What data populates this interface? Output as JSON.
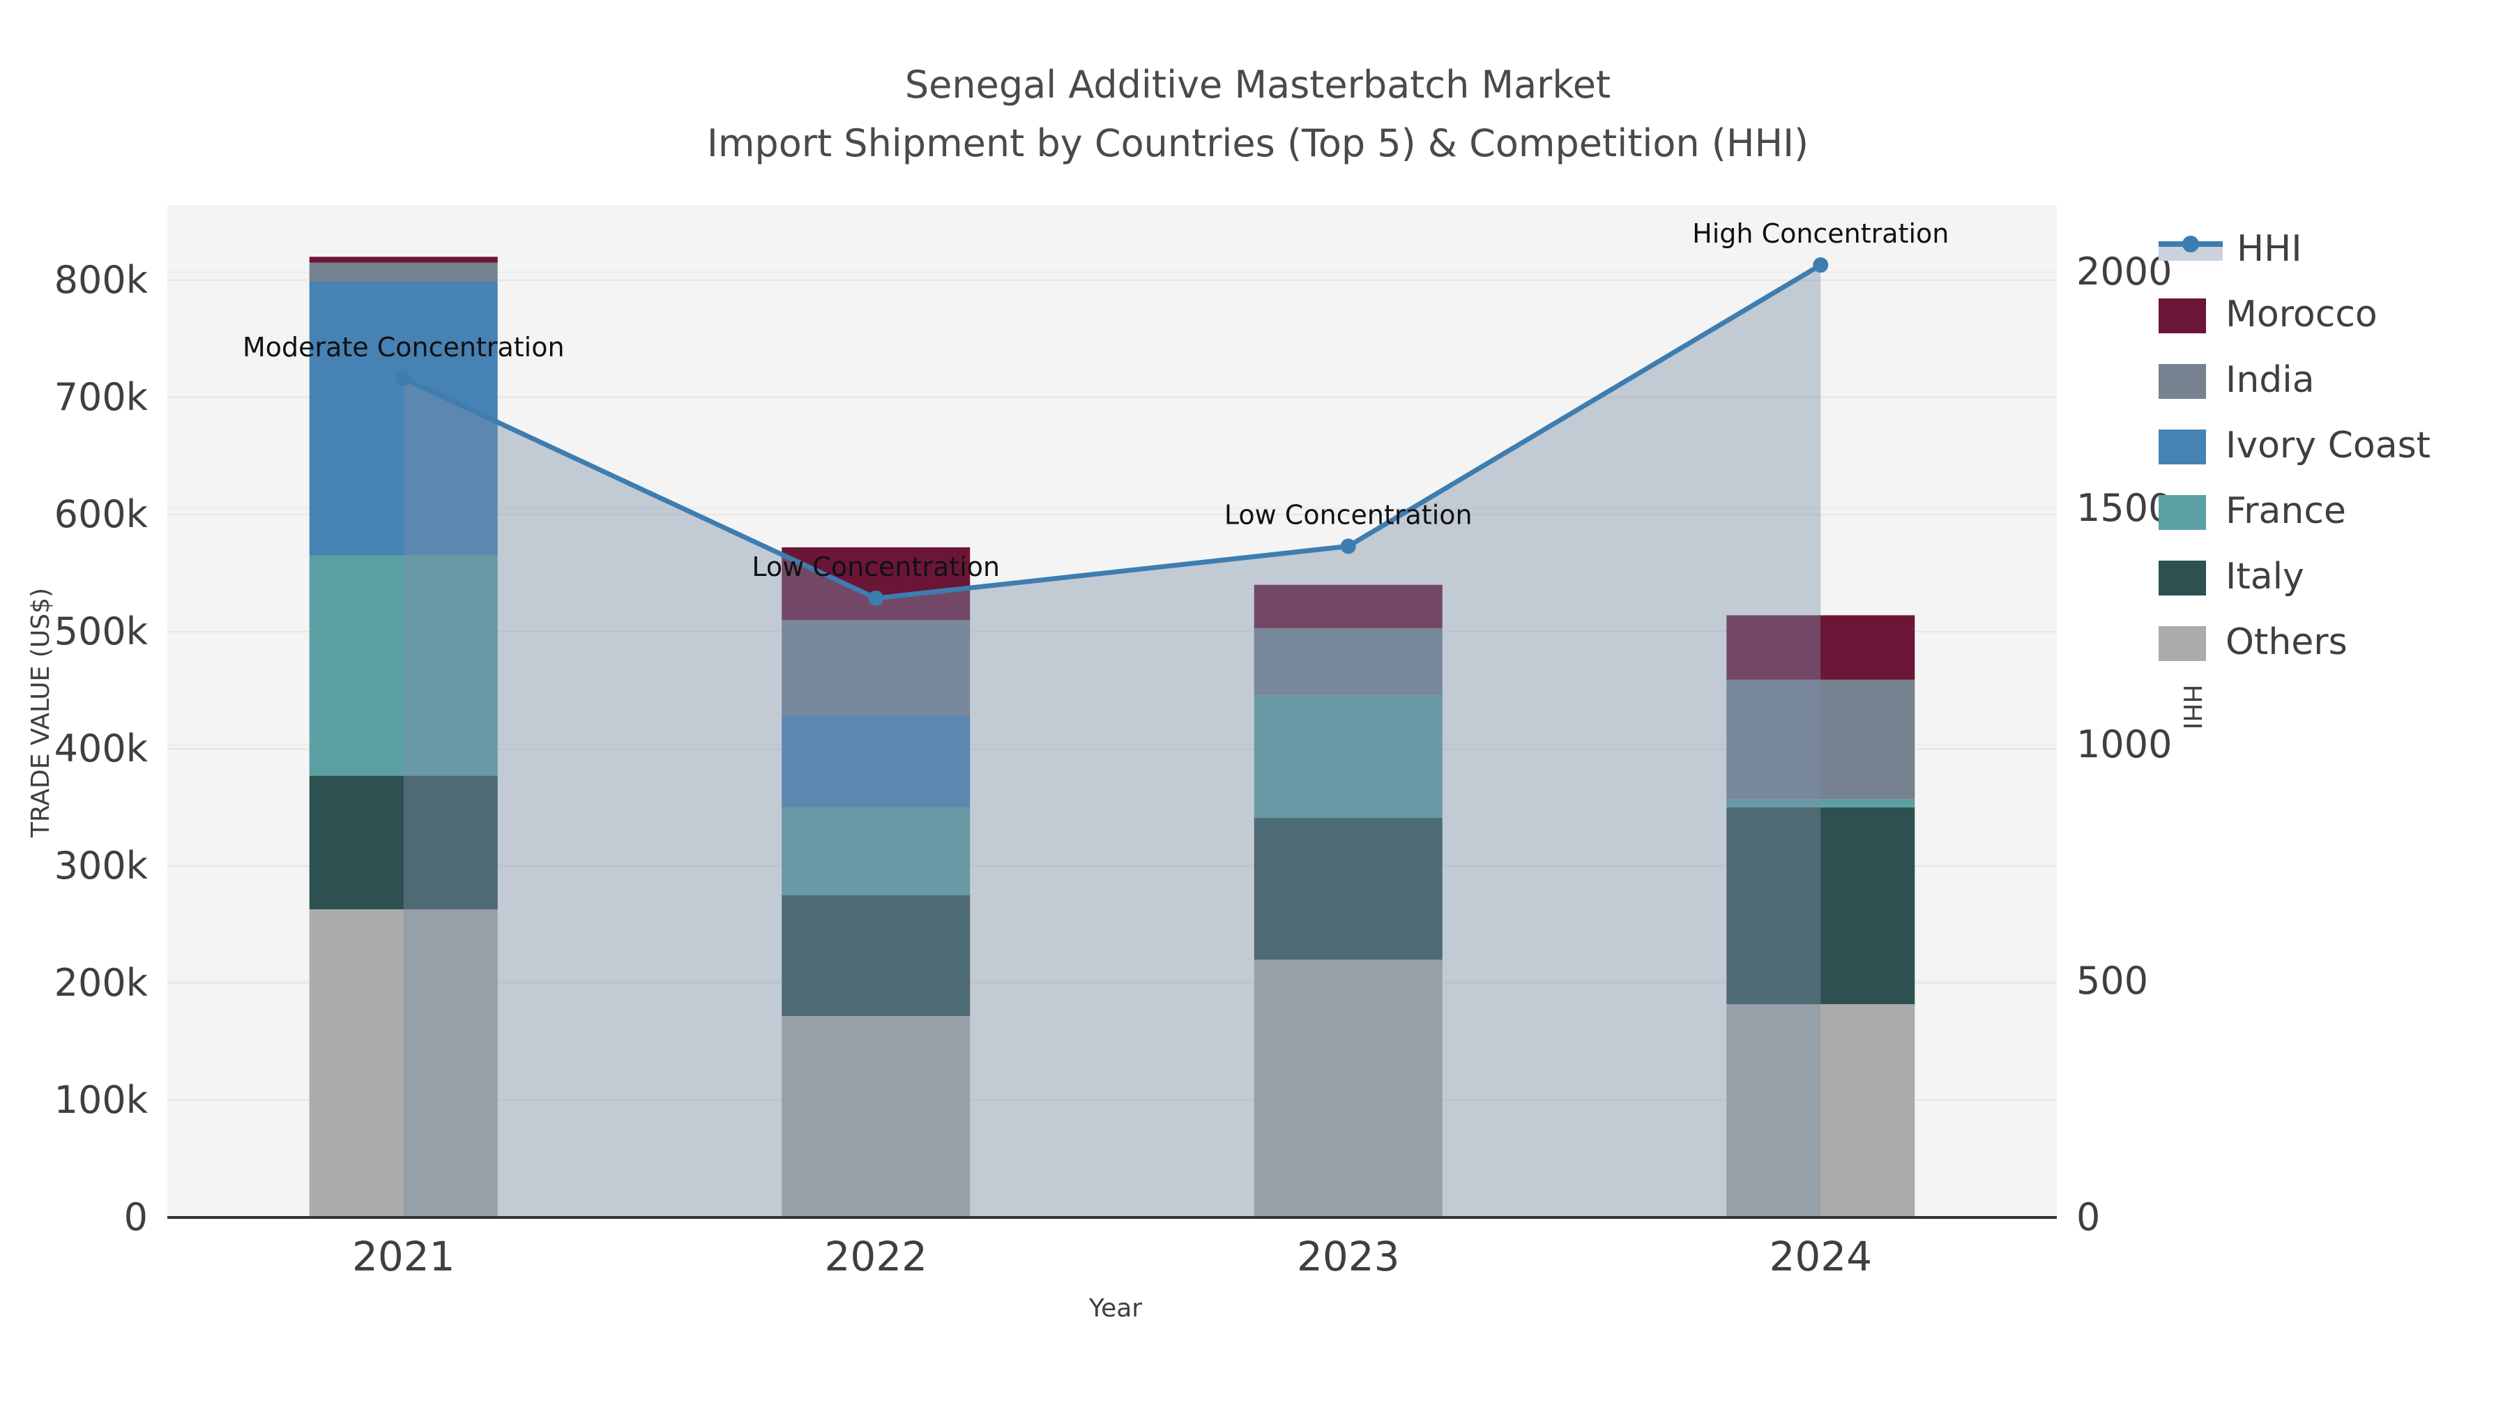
{
  "title": {
    "line1": "Senegal Additive Masterbatch Market",
    "line2": "Import Shipment by Countries (Top 5) & Competition (HHI)"
  },
  "axis_labels": {
    "x": "Year",
    "y_left": "TRADE VALUE (US$)",
    "y_right": "HHI"
  },
  "legend_order": [
    "HHI",
    "Morocco",
    "India",
    "Ivory Coast",
    "France",
    "Italy",
    "Others"
  ],
  "chart_data": {
    "type": "combo-stacked-bar-line-dual-axis",
    "title": "Senegal Additive Masterbatch Market — Import Shipment by Countries (Top 5) & Competition (HHI)",
    "categories": [
      "2021",
      "2022",
      "2023",
      "2024"
    ],
    "bar_series": [
      {
        "name": "Others",
        "color": "#ABABAB",
        "values": [
          263000,
          172000,
          220000,
          182000
        ]
      },
      {
        "name": "Italy",
        "color": "#2E5050",
        "values": [
          114000,
          103000,
          121000,
          168000
        ]
      },
      {
        "name": "France",
        "color": "#5BA0A3",
        "values": [
          188000,
          75000,
          105000,
          7000
        ]
      },
      {
        "name": "Ivory Coast",
        "color": "#4682B4",
        "values": [
          234000,
          79000,
          0,
          0
        ]
      },
      {
        "name": "India",
        "color": "#76828F",
        "values": [
          16000,
          81000,
          57000,
          102000
        ]
      },
      {
        "name": "Morocco",
        "color": "#6B1537",
        "values": [
          5000,
          62000,
          37000,
          55000
        ]
      }
    ],
    "bar_totals": [
      820000,
      572000,
      540000,
      514000
    ],
    "line_series": {
      "name": "HHI",
      "color": "#3E7DB0",
      "area_fill": "rgba(125,142,168,0.42)",
      "values": [
        1775,
        1310,
        1420,
        2015
      ]
    },
    "annotations": [
      "Moderate Concentration",
      "Low Concentration",
      "Low Concentration",
      "High Concentration"
    ],
    "xlabel": "Year",
    "y_left": {
      "label": "TRADE VALUE (US$)",
      "tick_step": 100000,
      "max_tick": 800000,
      "axis_max": 863000,
      "tick_suffix": "k"
    },
    "y_right": {
      "label": "HHI",
      "tick_step": 500,
      "max_tick": 2000,
      "axis_max": 2139
    },
    "grid": true,
    "legend_position": "top-right-outside",
    "plot_bg": "#F4F4F4",
    "grid_color": "#E7E7E7",
    "axis_line_color": "#333333",
    "tick_color": "#3F3F3F",
    "annotation_color": "#111111"
  }
}
